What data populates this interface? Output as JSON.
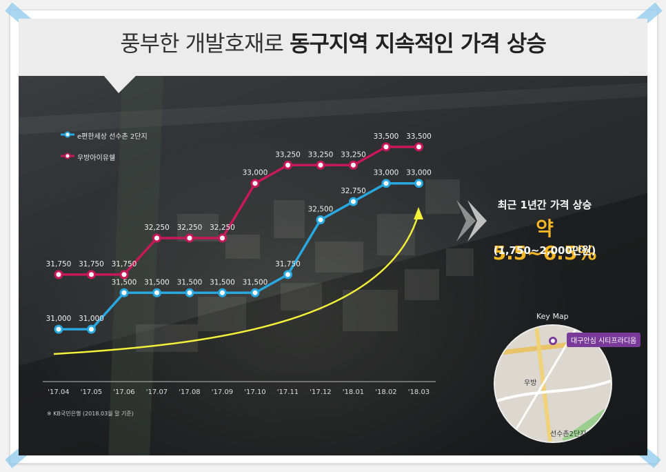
{
  "title": {
    "part1": "풍부한 개발호재로",
    "part2": "동구지역 지속적인 가격 상승"
  },
  "legend": {
    "series1": "e편한세상  선수촌 2단지",
    "series2": "우방아이유쉘"
  },
  "side": {
    "line1": "최근 1년간 가격 상승",
    "line2": "약 5.5~6.5%",
    "line3": "(1,750~2,000만원)"
  },
  "note": "※ KB국민은행 (2018.03월 말 기준)",
  "keymap": {
    "title": "Key Map",
    "badge": "대구안심 시티프라디움",
    "label_woobang": "우방",
    "label_seonsu": "선수촌2단지"
  },
  "colors": {
    "series1": "#29a8e0",
    "series2": "#c8185a",
    "arrow": "#f3f03a"
  },
  "chart_data": {
    "type": "line",
    "categories": [
      "'17.04",
      "'17.05",
      "'17.06",
      "'17.07",
      "'17.08",
      "'17.09",
      "'17.10",
      "'17.11",
      "'17.12",
      "'18.01",
      "'18.02",
      "'18.03"
    ],
    "ylim": [
      30500,
      34000
    ],
    "series": [
      {
        "name": "e편한세상  선수촌 2단지",
        "values": [
          31000,
          31000,
          31500,
          31500,
          31500,
          31500,
          31500,
          31750,
          32500,
          32750,
          33000,
          33000
        ],
        "labels": [
          "31,000",
          "31,000",
          "31,500",
          "31,500",
          "31,500",
          "31,500",
          "31,500",
          "31,750",
          "32,500",
          "32,750",
          "33,000",
          "33,000"
        ]
      },
      {
        "name": "우방아이유쉘",
        "values": [
          31750,
          31750,
          31750,
          32250,
          32250,
          32250,
          33000,
          33250,
          33250,
          33250,
          33500,
          33500
        ],
        "labels": [
          "31,750",
          "31,750",
          "31,750",
          "32,250",
          "32,250",
          "32,250",
          "33,000",
          "33,250",
          "33,250",
          "33,250",
          "33,500",
          "33,500"
        ]
      }
    ]
  }
}
